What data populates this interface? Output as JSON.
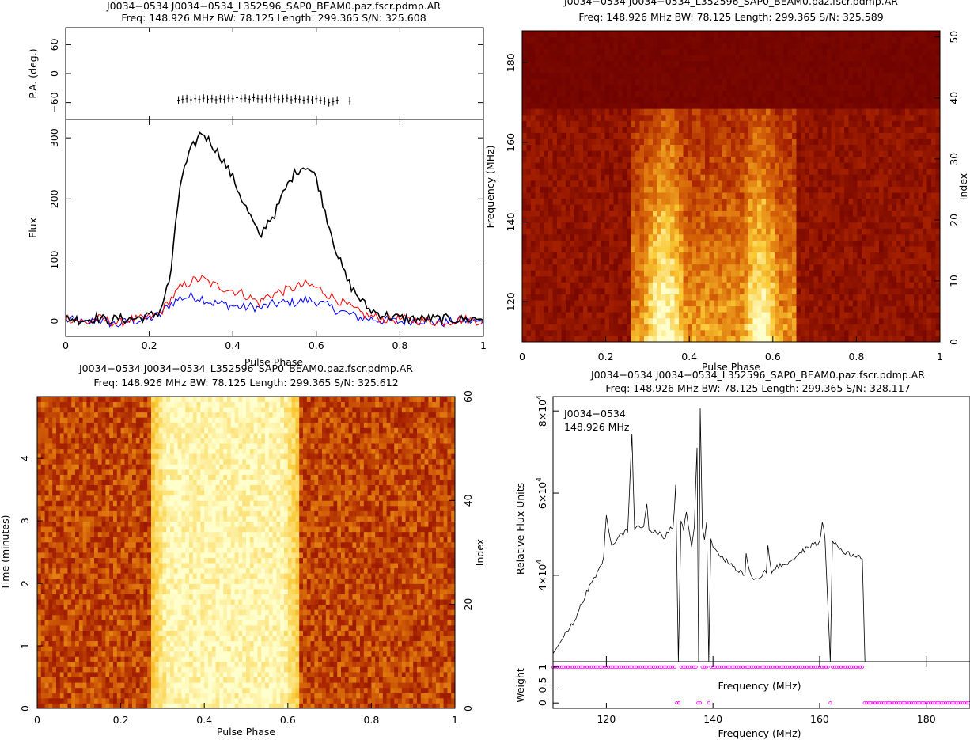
{
  "chart_data": [
    {
      "id": "profile",
      "type": "line",
      "title_lines": [
        "J0034−0534 J0034−0534_L352596_SAP0_BEAM0.paz.fscr.pdmp.AR",
        "Freq: 148.926 MHz BW: 78.125 Length: 299.365 S/N: 325.608"
      ],
      "xlabel": "Pulse Phase",
      "x_ticks": [
        "0",
        "0.2",
        "0.4",
        "0.6",
        "0.8",
        "1"
      ],
      "xlim": [
        0,
        1
      ],
      "top_panel": {
        "ylabel": "P.A. (deg.)",
        "y_ticks": [
          "−60",
          "0",
          "60"
        ],
        "ylim": [
          -95,
          95
        ],
        "points": [
          [
            0.27,
            -55
          ],
          [
            0.28,
            -53
          ],
          [
            0.29,
            -52
          ],
          [
            0.3,
            -54
          ],
          [
            0.31,
            -52
          ],
          [
            0.32,
            -53
          ],
          [
            0.33,
            -51
          ],
          [
            0.34,
            -53
          ],
          [
            0.35,
            -52
          ],
          [
            0.36,
            -54
          ],
          [
            0.37,
            -52
          ],
          [
            0.38,
            -53
          ],
          [
            0.39,
            -51
          ],
          [
            0.4,
            -52
          ],
          [
            0.41,
            -50
          ],
          [
            0.42,
            -52
          ],
          [
            0.43,
            -51
          ],
          [
            0.44,
            -53
          ],
          [
            0.45,
            -50
          ],
          [
            0.46,
            -52
          ],
          [
            0.47,
            -53
          ],
          [
            0.48,
            -51
          ],
          [
            0.49,
            -52
          ],
          [
            0.5,
            -50
          ],
          [
            0.51,
            -53
          ],
          [
            0.52,
            -52
          ],
          [
            0.53,
            -51
          ],
          [
            0.54,
            -54
          ],
          [
            0.55,
            -52
          ],
          [
            0.56,
            -53
          ],
          [
            0.57,
            -55
          ],
          [
            0.58,
            -53
          ],
          [
            0.59,
            -54
          ],
          [
            0.6,
            -52
          ],
          [
            0.61,
            -55
          ],
          [
            0.62,
            -57
          ],
          [
            0.63,
            -60
          ],
          [
            0.64,
            -58
          ],
          [
            0.65,
            -55
          ],
          [
            0.68,
            -57
          ]
        ]
      },
      "bottom_panel": {
        "ylabel": "Flux",
        "y_ticks": [
          "0",
          "100",
          "200",
          "300"
        ],
        "ylim": [
          -25,
          330
        ],
        "x": [
          0.0,
          0.025,
          0.05,
          0.075,
          0.1,
          0.125,
          0.15,
          0.175,
          0.2,
          0.225,
          0.25,
          0.275,
          0.3,
          0.325,
          0.35,
          0.375,
          0.4,
          0.425,
          0.45,
          0.465,
          0.48,
          0.5,
          0.525,
          0.55,
          0.575,
          0.6,
          0.625,
          0.65,
          0.675,
          0.7,
          0.725,
          0.75,
          0.775,
          0.8,
          0.85,
          0.9,
          0.95,
          1.0
        ],
        "series": [
          {
            "name": "Total intensity",
            "color": "#000000",
            "values": [
              5,
              3,
              2,
              6,
              1,
              4,
              3,
              5,
              8,
              15,
              70,
              230,
              280,
              310,
              290,
              265,
              235,
              195,
              160,
              135,
              160,
              175,
              215,
              245,
              255,
              235,
              170,
              110,
              65,
              40,
              20,
              12,
              8,
              5,
              3,
              4,
              2,
              5
            ]
          },
          {
            "name": "Linear polarisation",
            "color": "#ff0000",
            "values": [
              6,
              2,
              -3,
              4,
              1,
              -5,
              3,
              2,
              6,
              12,
              35,
              55,
              65,
              70,
              60,
              55,
              50,
              45,
              35,
              30,
              40,
              45,
              50,
              55,
              60,
              55,
              45,
              35,
              25,
              15,
              8,
              5,
              2,
              3,
              1,
              -2,
              3,
              0
            ]
          },
          {
            "name": "Circular polarisation",
            "color": "#0000ff",
            "values": [
              2,
              0,
              -4,
              3,
              -2,
              -6,
              0,
              1,
              4,
              10,
              28,
              38,
              40,
              38,
              30,
              28,
              25,
              22,
              24,
              20,
              25,
              28,
              30,
              30,
              35,
              32,
              25,
              18,
              12,
              6,
              4,
              2,
              0,
              -1,
              2,
              -3,
              1,
              -2
            ]
          }
        ]
      }
    },
    {
      "id": "freq-phase",
      "type": "heatmap",
      "title_lines": [
        "J0034−0534 J0034−0534_L352596_SAP0_BEAM0.paz.fscr.pdmp.AR",
        "Freq: 148.926 MHz BW: 78.125 Length: 299.365 S/N: 325.589"
      ],
      "xlabel": "Pulse Phase",
      "ylabel": "Frequency (MHz)",
      "right_label": "Index",
      "x_ticks": [
        "0",
        "0.2",
        "0.4",
        "0.6",
        "0.8",
        "1"
      ],
      "y_ticks": [
        "120",
        "140",
        "160",
        "180"
      ],
      "right_ticks": [
        "0",
        "10",
        "20",
        "30",
        "40",
        "50"
      ],
      "xlim": [
        0,
        1
      ],
      "ylim": [
        109.9,
        188.0
      ],
      "index_range": [
        0,
        51
      ],
      "rows": 52,
      "cols": 96,
      "signal_band_mhz": [
        109.9,
        168.0
      ],
      "pulse_window": [
        0.26,
        0.66
      ]
    },
    {
      "id": "time-phase",
      "type": "heatmap",
      "title_lines": [
        "J0034−0534 J0034−0534_L352596_SAP0_BEAM0.paz.fscr.pdmp.AR",
        "Freq: 148.926 MHz BW: 78.125 Length: 299.365 S/N: 325.612"
      ],
      "xlabel": "Pulse Phase",
      "ylabel": "Time (minutes)",
      "right_label": "Index",
      "x_ticks": [
        "0",
        "0.2",
        "0.4",
        "0.6",
        "0.8",
        "1"
      ],
      "y_ticks": [
        "0",
        "1",
        "2",
        "3",
        "4"
      ],
      "right_ticks": [
        "0",
        "20",
        "40",
        "60"
      ],
      "xlim": [
        0,
        1
      ],
      "ylim": [
        0,
        4.99
      ],
      "index_range": [
        0,
        60
      ],
      "rows": 60,
      "cols": 110,
      "pulse_window": [
        0.27,
        0.63
      ]
    },
    {
      "id": "bandpass",
      "type": "line",
      "title_lines": [
        "J0034−0534 J0034−0534_L352596_SAP0_BEAM0.paz.fscr.pdmp.AR",
        "Freq: 148.926 MHz BW: 78.125 Length: 299.365 S/N: 328.117"
      ],
      "annotation_lines": [
        "J0034−0534",
        "148.926 MHz"
      ],
      "xlabel": "Frequency (MHz)",
      "x_ticks": [
        "120",
        "140",
        "160",
        "180"
      ],
      "xlim": [
        110,
        188.2
      ],
      "top_panel": {
        "ylabel": "Relative Flux Units",
        "y_ticks": [
          {
            "mantissa": "4×10",
            "exp": "4",
            "value": 40000
          },
          {
            "mantissa": "6×10",
            "exp": "4",
            "value": 60000
          },
          {
            "mantissa": "8×10",
            "exp": "4",
            "value": 80000
          }
        ],
        "ylim": [
          19000,
          83500
        ],
        "x": [
          110,
          112,
          114,
          116,
          118,
          119.5,
          120,
          121,
          122,
          124,
          124.8,
          125.3,
          126,
          127,
          127.6,
          128,
          130,
          131,
          132,
          132.5,
          133,
          133.5,
          134,
          134.5,
          135,
          136,
          136.5,
          137,
          137.3,
          137.6,
          138,
          138.4,
          138.8,
          139.2,
          139.6,
          140,
          142,
          144,
          146,
          146.2,
          147,
          148,
          150,
          150.3,
          151,
          152,
          154,
          156,
          158,
          160,
          160.5,
          161,
          162,
          162.4,
          163,
          164,
          166,
          168,
          168.5
        ],
        "values": [
          21000,
          25000,
          29000,
          35000,
          40000,
          44000,
          55000,
          47000,
          49000,
          51000,
          74000,
          51000,
          52000,
          52000,
          57000,
          51000,
          50000,
          49000,
          52000,
          51000,
          62000,
          19000,
          53000,
          51000,
          56000,
          47000,
          52000,
          71000,
          19000,
          81000,
          52000,
          49000,
          53000,
          19000,
          49000,
          47000,
          44000,
          42000,
          40000,
          45000,
          40000,
          39000,
          41000,
          47000,
          41000,
          42000,
          43000,
          45000,
          47000,
          48000,
          53000,
          49000,
          19000,
          48000,
          48000,
          46000,
          45000,
          44000,
          19000
        ]
      },
      "bottom_panel": {
        "ylabel": "Weight",
        "inner_label": "Frequency (MHz)",
        "y_ticks": [
          "0",
          "0.5",
          "1"
        ],
        "ylim": [
          -0.15,
          1.15
        ],
        "channel_step_mhz": 0.4,
        "zero_weight_ranges_mhz": [
          [
            133.2,
            133.8
          ],
          [
            137.1,
            137.8
          ],
          [
            138.9,
            139.3
          ],
          [
            161.8,
            162.2
          ],
          [
            168.4,
            188.2
          ]
        ]
      }
    }
  ]
}
